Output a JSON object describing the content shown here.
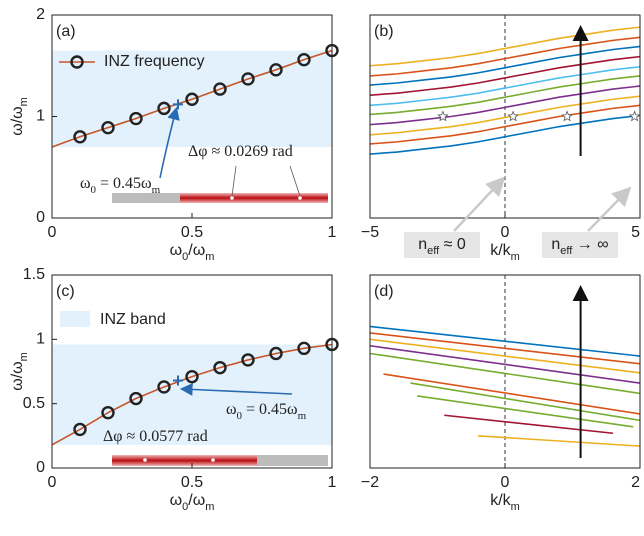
{
  "chart_data": [
    {
      "type": "line",
      "label": "(a)",
      "xlabel": [
        "ω",
        "0",
        "/ω",
        "m"
      ],
      "ylabel": [
        "ω/ω",
        "m"
      ],
      "xlim": [
        0,
        1
      ],
      "ylim": [
        0,
        2
      ],
      "xticks": [
        0,
        0.5,
        1
      ],
      "yticks": [
        0,
        1,
        2
      ],
      "band": [
        0.7,
        1.65
      ],
      "band_color": "#e2f1fb",
      "series": [
        {
          "color": "#c8552a",
          "linestyle": "solid",
          "marker": "none",
          "x": [
            0,
            0.1,
            0.2,
            0.3,
            0.4,
            0.5,
            0.6,
            0.7,
            0.8,
            0.9,
            1
          ],
          "values": [
            0.7,
            0.8,
            0.89,
            0.98,
            1.08,
            1.17,
            1.27,
            1.37,
            1.46,
            1.56,
            1.65
          ]
        },
        {
          "name": "INZ frequency",
          "color": "#c8552a",
          "edgecolor": "#222222",
          "linestyle": "none",
          "marker": "circle",
          "x": [
            0.1,
            0.2,
            0.3,
            0.4,
            0.5,
            0.6,
            0.7,
            0.8,
            0.9,
            1
          ],
          "values": [
            0.8,
            0.89,
            0.98,
            1.08,
            1.17,
            1.27,
            1.37,
            1.46,
            1.56,
            1.65
          ]
        }
      ],
      "point": {
        "x": 0.45,
        "y": 1.12,
        "color": "#2a6ab3"
      },
      "annotations": [
        {
          "text": [
            "Δφ ≈ 0.0269 rad"
          ],
          "color": "#2a6ab3"
        },
        {
          "text": [
            "ω",
            "0",
            " = 0.45ω",
            "m"
          ],
          "color": "#2a6ab3"
        }
      ]
    },
    {
      "type": "line",
      "label": "(b)",
      "xlabel": [
        "k/k",
        "m"
      ],
      "xlim": [
        -5,
        5
      ],
      "ylim": [
        0,
        2
      ],
      "xticks": [
        {
          "value": -5,
          "label": "−5"
        },
        0,
        5
      ],
      "vline": 0,
      "series": [
        {
          "color": "#0072BD",
          "x": [
            -5,
            -4,
            -3,
            -2,
            -1,
            0,
            1,
            2,
            3,
            4,
            5
          ],
          "values": [
            0.63,
            0.65,
            0.68,
            0.71,
            0.75,
            0.8,
            0.85,
            0.9,
            0.94,
            0.98,
            1.01
          ]
        },
        {
          "color": "#D95319",
          "x": [
            -5,
            -4,
            -3,
            -2,
            -1,
            0,
            1,
            2,
            3,
            4,
            5
          ],
          "values": [
            0.73,
            0.75,
            0.78,
            0.81,
            0.85,
            0.9,
            0.95,
            1.0,
            1.04,
            1.08,
            1.11
          ]
        },
        {
          "color": "#EDB120",
          "x": [
            -5,
            -4,
            -3,
            -2,
            -1,
            0,
            1,
            2,
            3,
            4,
            5
          ],
          "values": [
            0.82,
            0.84,
            0.87,
            0.9,
            0.94,
            0.99,
            1.04,
            1.09,
            1.13,
            1.17,
            1.2
          ]
        },
        {
          "color": "#7E2F8E",
          "x": [
            -5,
            -4,
            -3,
            -2,
            -1,
            0,
            1,
            2,
            3,
            4,
            5
          ],
          "values": [
            0.92,
            0.94,
            0.97,
            1.0,
            1.04,
            1.09,
            1.14,
            1.19,
            1.23,
            1.27,
            1.3
          ]
        },
        {
          "color": "#77AC30",
          "x": [
            -5,
            -4,
            -3,
            -2,
            -1,
            0,
            1,
            2,
            3,
            4,
            5
          ],
          "values": [
            1.02,
            1.04,
            1.07,
            1.1,
            1.14,
            1.19,
            1.24,
            1.29,
            1.33,
            1.37,
            1.4
          ]
        },
        {
          "color": "#4DBEEE",
          "x": [
            -5,
            -4,
            -3,
            -2,
            -1,
            0,
            1,
            2,
            3,
            4,
            5
          ],
          "values": [
            1.11,
            1.13,
            1.16,
            1.19,
            1.23,
            1.28,
            1.33,
            1.38,
            1.42,
            1.46,
            1.49
          ]
        },
        {
          "color": "#A2142F",
          "x": [
            -5,
            -4,
            -3,
            -2,
            -1,
            0,
            1,
            2,
            3,
            4,
            5
          ],
          "values": [
            1.21,
            1.23,
            1.26,
            1.29,
            1.33,
            1.38,
            1.43,
            1.48,
            1.52,
            1.56,
            1.59
          ]
        },
        {
          "color": "#0072BD",
          "x": [
            -5,
            -4,
            -3,
            -2,
            -1,
            0,
            1,
            2,
            3,
            4,
            5
          ],
          "values": [
            1.31,
            1.33,
            1.36,
            1.39,
            1.43,
            1.48,
            1.53,
            1.58,
            1.62,
            1.66,
            1.69
          ]
        },
        {
          "color": "#D95319",
          "x": [
            -5,
            -4,
            -3,
            -2,
            -1,
            0,
            1,
            2,
            3,
            4,
            5
          ],
          "values": [
            1.4,
            1.42,
            1.45,
            1.48,
            1.52,
            1.57,
            1.62,
            1.67,
            1.71,
            1.75,
            1.78
          ]
        },
        {
          "color": "#EDB120",
          "x": [
            -5,
            -4,
            -3,
            -2,
            -1,
            0,
            1,
            2,
            3,
            4,
            5
          ],
          "values": [
            1.5,
            1.52,
            1.55,
            1.58,
            1.62,
            1.67,
            1.72,
            1.77,
            1.81,
            1.85,
            1.88
          ]
        },
        {
          "color": "#ffffff",
          "edgecolor": "#555555",
          "linestyle": "none",
          "marker": "star",
          "x": [
            -2.3,
            0.3,
            2.3,
            4.8
          ],
          "values": [
            1,
            1,
            1,
            1
          ]
        }
      ],
      "annotations": [
        {
          "text": [
            "n",
            "eff",
            " ≈ 0"
          ],
          "color": "#222222"
        },
        {
          "text": [
            "n",
            "eff",
            " → ∞"
          ],
          "color": "#222222"
        }
      ]
    },
    {
      "type": "line",
      "label": "(c)",
      "xlabel": [
        "ω",
        "0",
        "/ω",
        "m"
      ],
      "ylabel": [
        "ω/ω",
        "m"
      ],
      "xlim": [
        0,
        1
      ],
      "ylim": [
        0,
        1.5
      ],
      "xticks": [
        0,
        0.5,
        1
      ],
      "yticks": [
        0,
        0.5,
        1,
        1.5
      ],
      "band": [
        0.18,
        0.96
      ],
      "band_color": "#e2f1fb",
      "band_name": "INZ band",
      "series": [
        {
          "color": "#c8552a",
          "linestyle": "solid",
          "marker": "none",
          "x": [
            0,
            0.1,
            0.2,
            0.3,
            0.4,
            0.5,
            0.6,
            0.7,
            0.8,
            0.9,
            1
          ],
          "values": [
            0.18,
            0.3,
            0.43,
            0.54,
            0.63,
            0.71,
            0.78,
            0.84,
            0.89,
            0.93,
            0.96
          ]
        },
        {
          "color": "#c8552a",
          "edgecolor": "#222222",
          "linestyle": "none",
          "marker": "circle",
          "x": [
            0.1,
            0.2,
            0.3,
            0.4,
            0.5,
            0.6,
            0.7,
            0.8,
            0.9,
            1
          ],
          "values": [
            0.3,
            0.43,
            0.54,
            0.63,
            0.71,
            0.78,
            0.84,
            0.89,
            0.93,
            0.96
          ]
        }
      ],
      "point": {
        "x": 0.45,
        "y": 0.68,
        "color": "#2a6ab3"
      },
      "annotations": [
        {
          "text": [
            "Δφ ≈ 0.0577 rad"
          ],
          "color": "#2a6ab3"
        },
        {
          "text": [
            "ω",
            "0",
            " = 0.45ω",
            "m"
          ],
          "color": "#2a6ab3"
        }
      ]
    },
    {
      "type": "line",
      "label": "(d)",
      "xlabel": [
        "k/k",
        "m"
      ],
      "xlim": [
        -2,
        2
      ],
      "ylim": [
        0,
        1.5
      ],
      "xticks": [
        {
          "value": -2,
          "label": "−2"
        },
        0,
        2
      ],
      "vline": 0,
      "series": [
        {
          "color": "#0072BD",
          "x": [
            -2,
            2
          ],
          "values": [
            1.1,
            0.87
          ]
        },
        {
          "color": "#D95319",
          "x": [
            -2,
            2
          ],
          "values": [
            1.05,
            0.81
          ]
        },
        {
          "color": "#EDB120",
          "x": [
            -2,
            2
          ],
          "values": [
            1.0,
            0.74
          ]
        },
        {
          "color": "#7E2F8E",
          "x": [
            -2,
            2
          ],
          "values": [
            0.95,
            0.66
          ]
        },
        {
          "color": "#77AC30",
          "x": [
            -2,
            2
          ],
          "values": [
            0.89,
            0.58
          ]
        },
        {
          "color": "#D95319",
          "x": [
            -1.8,
            2
          ],
          "values": [
            0.73,
            0.42
          ]
        },
        {
          "color": "#77AC30",
          "x": [
            -1.4,
            2
          ],
          "values": [
            0.66,
            0.37
          ]
        },
        {
          "color": "#77AC30",
          "x": [
            -1.3,
            1.9
          ],
          "values": [
            0.56,
            0.32
          ]
        },
        {
          "color": "#A2142F",
          "x": [
            -0.9,
            1.6
          ],
          "values": [
            0.41,
            0.27
          ]
        },
        {
          "color": "#EDB120",
          "x": [
            -0.4,
            2
          ],
          "values": [
            0.25,
            0.17
          ]
        }
      ]
    }
  ]
}
